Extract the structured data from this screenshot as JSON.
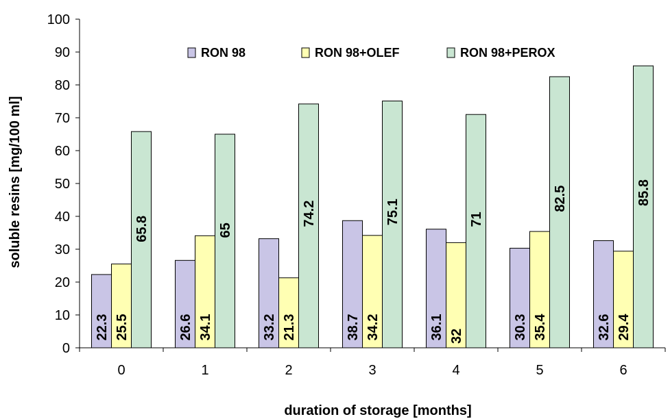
{
  "chart_data": {
    "type": "bar",
    "title": "",
    "xlabel": "duration of storage [months]",
    "ylabel": "soluble resins [mg/100 ml]",
    "categories": [
      "0",
      "1",
      "2",
      "3",
      "4",
      "5",
      "6"
    ],
    "ylim": [
      0,
      100
    ],
    "yticks": [
      0,
      10,
      20,
      30,
      40,
      50,
      60,
      70,
      80,
      90,
      100
    ],
    "grid": false,
    "legend_position": "top",
    "series": [
      {
        "name": "RON 98",
        "color": "#C9C5E6",
        "values": [
          22.3,
          26.6,
          33.2,
          38.7,
          36.1,
          30.3,
          32.6
        ],
        "labels": [
          "22.3",
          "26.6",
          "33.2",
          "38.7",
          "36.1",
          "30.3",
          "32.6"
        ]
      },
      {
        "name": "RON 98+OLEF",
        "color": "#FFFFB3",
        "values": [
          25.5,
          34.1,
          21.3,
          34.2,
          32,
          35.4,
          29.4
        ],
        "labels": [
          "25.5",
          "34.1",
          "21.3",
          "34.2",
          "32",
          "35.4",
          "29.4"
        ]
      },
      {
        "name": "RON 98+PEROX",
        "color": "#C9E6D2",
        "values": [
          65.8,
          65,
          74.2,
          75.1,
          71,
          82.5,
          85.8
        ],
        "labels": [
          "65.8",
          "65",
          "74.2",
          "75.1",
          "71",
          "82.5",
          "85.8"
        ]
      }
    ]
  }
}
